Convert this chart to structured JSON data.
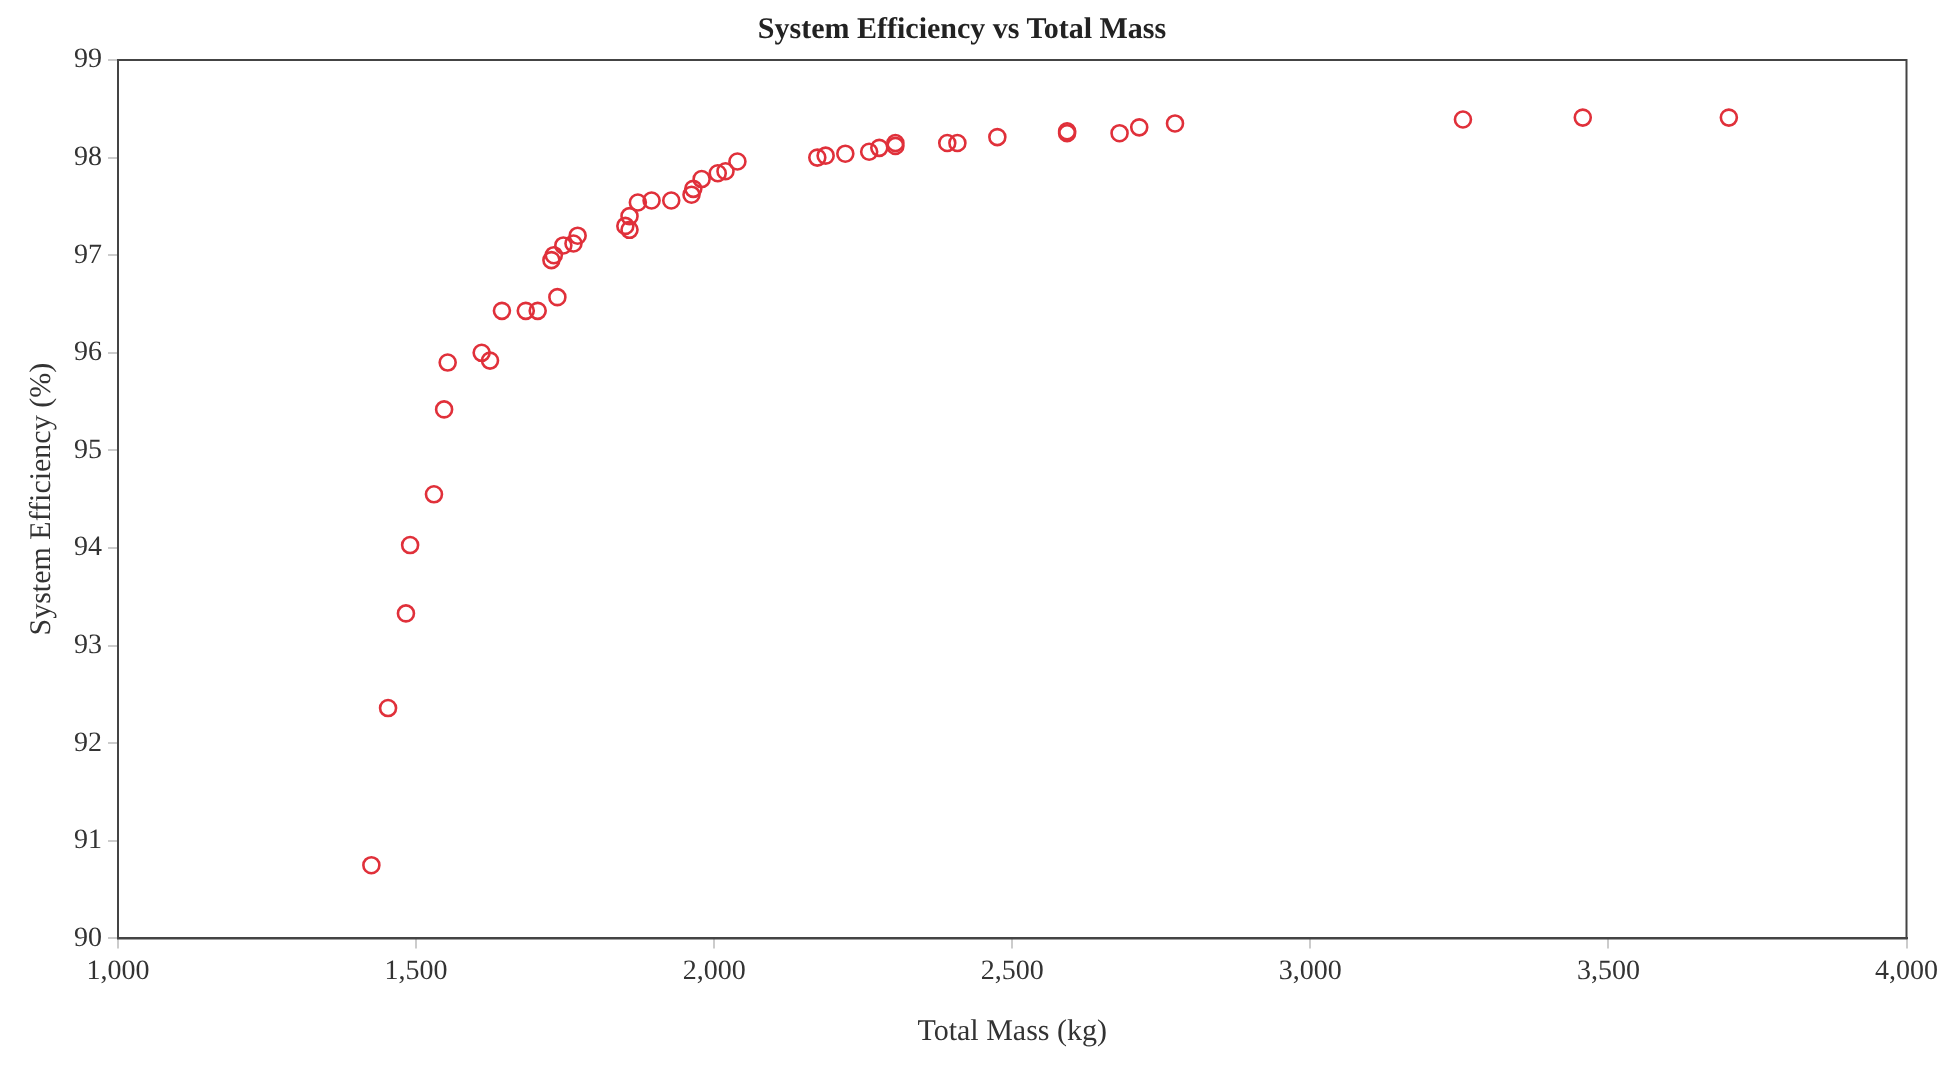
{
  "chart_data": {
    "type": "scatter",
    "title": "System Efficiency vs Total Mass",
    "xlabel": "Total Mass (kg)",
    "ylabel": "System Efficiency (%)",
    "x": [
      1425,
      1453,
      1483,
      1490,
      1530,
      1547,
      1553,
      1610,
      1624,
      1644,
      1684,
      1704,
      1737,
      1727,
      1731,
      1747,
      1764,
      1771,
      1851,
      1858,
      1858,
      1872,
      1895,
      1928,
      1962,
      1965,
      1979,
      2006,
      2019,
      2039,
      2173,
      2187,
      2220,
      2260,
      2277,
      2304,
      2304,
      2391,
      2408,
      2475,
      2592,
      2592,
      2680,
      2713,
      2773,
      3256,
      3457,
      3702
    ],
    "series": [
      {
        "color": "#e0303a",
        "values": [
          90.75,
          92.36,
          93.33,
          94.03,
          94.55,
          95.42,
          95.9,
          96.0,
          95.92,
          96.43,
          96.43,
          96.43,
          96.57,
          96.95,
          97.0,
          97.1,
          97.12,
          97.2,
          97.3,
          97.26,
          97.4,
          97.54,
          97.56,
          97.56,
          97.62,
          97.68,
          97.78,
          97.84,
          97.86,
          97.96,
          98.0,
          98.02,
          98.04,
          98.06,
          98.1,
          98.12,
          98.15,
          98.15,
          98.15,
          98.21,
          98.25,
          98.27,
          98.25,
          98.31,
          98.35,
          98.39,
          98.41,
          98.41
        ]
      }
    ],
    "xlim": [
      1000,
      4000
    ],
    "xticks": [
      {
        "value": 1000,
        "label": "1,000"
      },
      {
        "value": 1500,
        "label": "1,500"
      },
      {
        "value": 2000,
        "label": "2,000"
      },
      {
        "value": 2500,
        "label": "2,500"
      },
      {
        "value": 3000,
        "label": "3,000"
      },
      {
        "value": 3500,
        "label": "3,500"
      },
      {
        "value": 4000,
        "label": "4,000"
      }
    ],
    "ylim": [
      90,
      99
    ],
    "yticks": [
      90,
      91,
      92,
      93,
      94,
      95,
      96,
      97,
      98,
      99
    ],
    "grid": false,
    "legend": false,
    "marker": "circle"
  }
}
